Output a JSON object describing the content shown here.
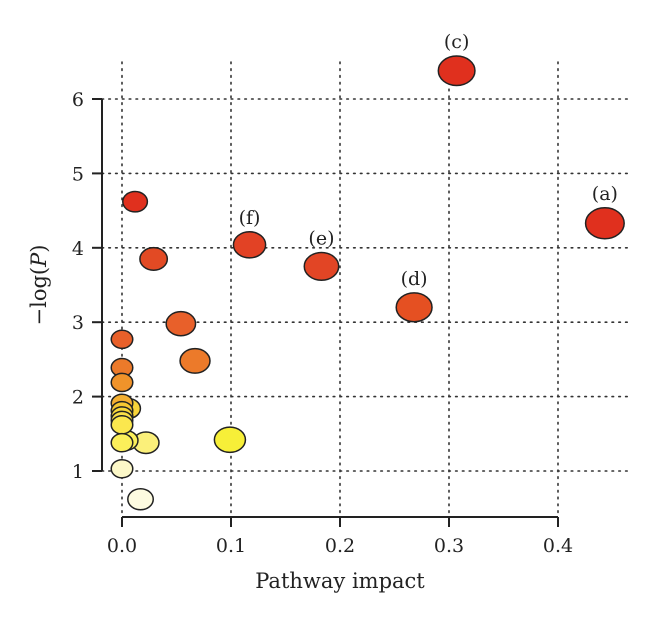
{
  "chart_data": {
    "type": "scatter",
    "xlabel": "Pathway impact",
    "ylabel": "−log(",
    "ylabel_italic": "P",
    "ylabel_close": ")",
    "xlim": [
      -0.01,
      0.46
    ],
    "ylim": [
      0.5,
      6.8
    ],
    "x_ticks": [
      0.0,
      0.1,
      0.2,
      0.3,
      0.4
    ],
    "x_tick_labels": [
      "0.0",
      "0.1",
      "0.2",
      "0.3",
      "0.4"
    ],
    "y_ticks": [
      1,
      2,
      3,
      4,
      5,
      6
    ],
    "y_tick_labels": [
      "1",
      "2",
      "3",
      "4",
      "5",
      "6"
    ],
    "grid": "dotted",
    "color_scale": [
      "#fdfbd0",
      "#fbef5a",
      "#f6c832",
      "#f0932a",
      "#e8602a",
      "#e0301e"
    ],
    "points": [
      {
        "x": 0.443,
        "y": 4.33,
        "size": 0.95,
        "color": "#e0301e",
        "label": "(a)"
      },
      {
        "x": 0.307,
        "y": 6.38,
        "size": 0.88,
        "color": "#e0301e",
        "label": "(c)"
      },
      {
        "x": 0.268,
        "y": 3.2,
        "size": 0.85,
        "color": "#e55022",
        "label": "(d)"
      },
      {
        "x": 0.183,
        "y": 3.75,
        "size": 0.8,
        "color": "#e24525",
        "label": "(e)"
      },
      {
        "x": 0.117,
        "y": 4.04,
        "size": 0.72,
        "color": "#e24225",
        "label": "(f)"
      },
      {
        "x": 0.012,
        "y": 4.62,
        "size": 0.45,
        "color": "#e0301e",
        "label": ""
      },
      {
        "x": 0.029,
        "y": 3.85,
        "size": 0.55,
        "color": "#e24a24",
        "label": ""
      },
      {
        "x": 0.054,
        "y": 2.98,
        "size": 0.62,
        "color": "#e8602a",
        "label": ""
      },
      {
        "x": 0.067,
        "y": 2.48,
        "size": 0.64,
        "color": "#ec7a2a",
        "label": ""
      },
      {
        "x": 0.0,
        "y": 2.77,
        "size": 0.34,
        "color": "#e8602a",
        "label": ""
      },
      {
        "x": 0.0,
        "y": 2.39,
        "size": 0.34,
        "color": "#ec7a2a",
        "label": ""
      },
      {
        "x": 0.0,
        "y": 2.19,
        "size": 0.34,
        "color": "#f0932a",
        "label": ""
      },
      {
        "x": 0.0,
        "y": 1.91,
        "size": 0.34,
        "color": "#f4b032",
        "label": ""
      },
      {
        "x": 0.0,
        "y": 1.81,
        "size": 0.34,
        "color": "#f6c832",
        "label": ""
      },
      {
        "x": 0.0,
        "y": 1.74,
        "size": 0.34,
        "color": "#f8d83a",
        "label": ""
      },
      {
        "x": 0.0,
        "y": 1.68,
        "size": 0.34,
        "color": "#fae048",
        "label": ""
      },
      {
        "x": 0.0,
        "y": 1.62,
        "size": 0.34,
        "color": "#fbe74e",
        "label": ""
      },
      {
        "x": 0.006,
        "y": 1.84,
        "size": 0.42,
        "color": "#f8d43a",
        "label": ""
      },
      {
        "x": 0.004,
        "y": 1.41,
        "size": 0.4,
        "color": "#fbef5a",
        "label": ""
      },
      {
        "x": 0.0,
        "y": 1.38,
        "size": 0.34,
        "color": "#fbef5a",
        "label": ""
      },
      {
        "x": 0.022,
        "y": 1.38,
        "size": 0.5,
        "color": "#fbf07a",
        "label": ""
      },
      {
        "x": 0.099,
        "y": 1.42,
        "size": 0.68,
        "color": "#f7ef38",
        "label": ""
      },
      {
        "x": 0.0,
        "y": 1.03,
        "size": 0.34,
        "color": "#fcf8c8",
        "label": ""
      },
      {
        "x": 0.017,
        "y": 0.62,
        "size": 0.48,
        "color": "#fdfbe0",
        "label": ""
      }
    ]
  }
}
